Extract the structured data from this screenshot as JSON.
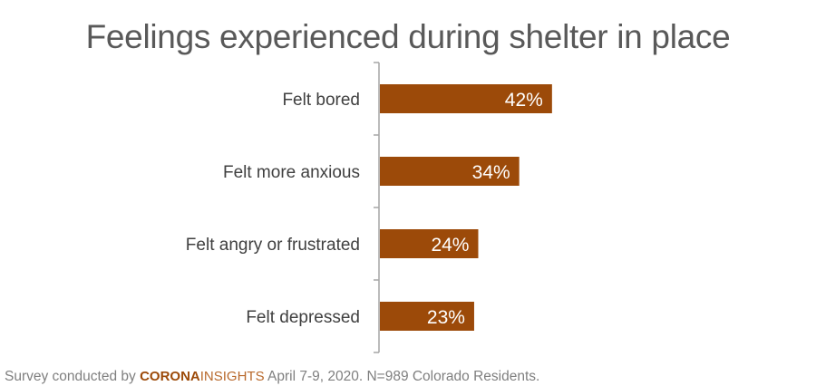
{
  "chart_data": {
    "type": "bar",
    "orientation": "horizontal",
    "title": "Feelings experienced during shelter in place",
    "categories": [
      "Felt bored",
      "Felt more anxious",
      "Felt angry or frustrated",
      "Felt depressed"
    ],
    "values": [
      42,
      34,
      24,
      23
    ],
    "data_labels": [
      "42%",
      "34%",
      "24%",
      "23%"
    ],
    "xlabel": "",
    "ylabel": "",
    "xlim": [
      0,
      100
    ],
    "grid": false,
    "bar_color": "#9c4a09",
    "label_color": "#ffffff"
  },
  "footer": {
    "prefix": "Survey conducted by ",
    "brand_bold": "CORONA",
    "brand_light": "INSIGHTS",
    "suffix": " April 7-9, 2020. N=989 Colorado Residents."
  }
}
